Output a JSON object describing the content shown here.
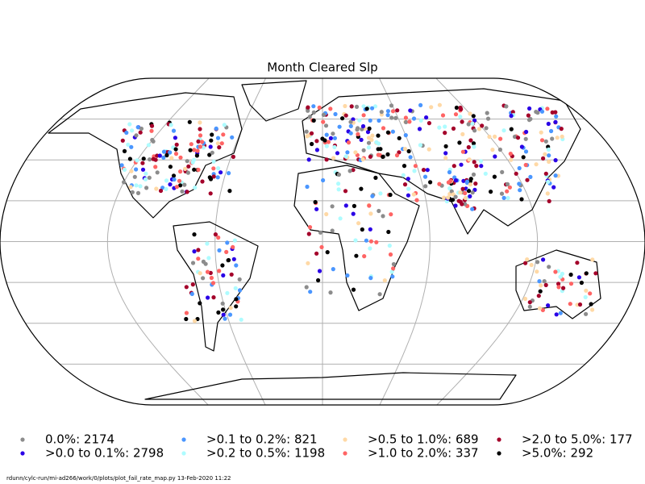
{
  "title": "Month Cleared Slp",
  "legend": [
    {
      "label": "0.0%: 2174",
      "color": "#8c8c8c"
    },
    {
      "label": ">0.0 to 0.1%: 2798",
      "color": "#2a00e6"
    },
    {
      "label": ">0.1 to 0.2%: 821",
      "color": "#4a96ff"
    },
    {
      "label": ">0.2 to 0.5%: 1198",
      "color": "#aefcff"
    },
    {
      "label": ">0.5 to 1.0%: 689",
      "color": "#ffd9a6"
    },
    {
      "label": ">1.0 to 2.0%: 337",
      "color": "#ff6464"
    },
    {
      "label": ">2.0 to 5.0%: 177",
      "color": "#a4002a"
    },
    {
      "label": ">5.0%: 292",
      "color": "#000000"
    }
  ],
  "footer": "rdunn/cylc-run/mi-ad266/work/0/plots/plot_fail_rate_map.py   13-Feb-2020 11:22"
}
